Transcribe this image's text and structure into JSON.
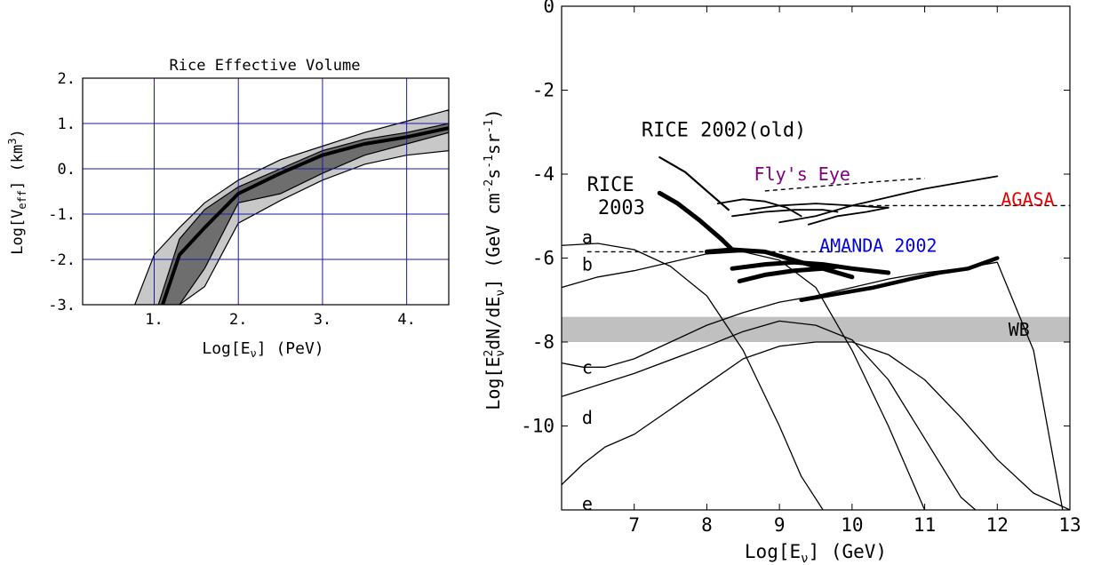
{
  "chart_data": [
    {
      "type": "area",
      "title": "Rice Effective Volume",
      "xlabel_main": "Log[E",
      "xlabel_sub": "ν",
      "xlabel_tail": "]  (PeV)",
      "ylabel_main": "Log[V",
      "ylabel_sub": "eff",
      "ylabel_tail": "]  (km",
      "ylabel_sup": "3",
      "ylabel_close": ")",
      "xlim": [
        0.15,
        4.5
      ],
      "ylim": [
        -3,
        2
      ],
      "xticks": [
        {
          "v": 1,
          "label": "1."
        },
        {
          "v": 2,
          "label": "2."
        },
        {
          "v": 3,
          "label": "3."
        },
        {
          "v": 4,
          "label": "4."
        }
      ],
      "yticks": [
        {
          "v": 2,
          "label": "2."
        },
        {
          "v": 1,
          "label": "1."
        },
        {
          "v": 0,
          "label": "0."
        },
        {
          "v": -1,
          "label": "-1."
        },
        {
          "v": -2,
          "label": "-2."
        },
        {
          "v": -3,
          "label": "-3."
        }
      ],
      "grid": true,
      "grid_color": "#1a1aa0",
      "bands": [
        {
          "color": "#c8c8c8",
          "x": [
            0.77,
            1.0,
            1.3,
            1.6,
            2.0,
            2.5,
            3.0,
            3.5,
            4.0,
            4.5
          ],
          "upper": [
            -3.0,
            -1.9,
            -1.3,
            -0.75,
            -0.25,
            0.2,
            0.5,
            0.8,
            1.05,
            1.3
          ],
          "lower": [
            -3.0,
            -3.0,
            -3.0,
            -2.6,
            -1.2,
            -0.7,
            -0.25,
            0.1,
            0.3,
            0.4
          ]
        },
        {
          "color": "#6e6e6e",
          "x": [
            1.05,
            1.3,
            1.6,
            2.0,
            2.5,
            3.0,
            3.5,
            4.0,
            4.5
          ],
          "upper": [
            -3.0,
            -1.55,
            -0.9,
            -0.4,
            0.0,
            0.4,
            0.65,
            0.8,
            1.0
          ],
          "lower": [
            -3.0,
            -3.0,
            -2.2,
            -0.75,
            -0.55,
            -0.1,
            0.3,
            0.55,
            0.8
          ]
        }
      ],
      "series": [
        {
          "line": "median",
          "width": 4,
          "x": [
            1.1,
            1.3,
            1.6,
            2.0,
            2.5,
            3.0,
            3.5,
            4.0,
            4.5
          ],
          "y": [
            -3.0,
            -1.9,
            -1.3,
            -0.55,
            -0.1,
            0.3,
            0.55,
            0.7,
            0.9
          ]
        }
      ]
    },
    {
      "type": "line",
      "xlabel_main": "Log[E",
      "xlabel_sub": "ν",
      "xlabel_tail": "]  (GeV)",
      "ylabel_main": "Log[E",
      "ylabel_sup1": "2",
      "ylabel_sub1": "ν",
      "ylabel_mid": "dN/dE",
      "ylabel_sub2": "ν",
      "ylabel_tail": "]   (GeV cm",
      "ylabel_sup2": "-2",
      "ylabel_s": "s",
      "ylabel_sup3": "-1",
      "ylabel_sr": "sr",
      "ylabel_sup4": "-1",
      "ylabel_close": ")",
      "xlim": [
        6,
        13
      ],
      "ylim": [
        -12,
        0
      ],
      "xticks": [
        {
          "v": 7,
          "label": "7"
        },
        {
          "v": 8,
          "label": "8"
        },
        {
          "v": 9,
          "label": "9"
        },
        {
          "v": 10,
          "label": "10"
        },
        {
          "v": 11,
          "label": "11"
        },
        {
          "v": 12,
          "label": "12"
        },
        {
          "v": 13,
          "label": "13"
        }
      ],
      "yticks": [
        {
          "v": 0,
          "label": "0"
        },
        {
          "v": -2,
          "label": "-2"
        },
        {
          "v": -4,
          "label": "-4"
        },
        {
          "v": -6,
          "label": "-6"
        },
        {
          "v": -8,
          "label": "-8"
        },
        {
          "v": -10,
          "label": "-10"
        }
      ],
      "grid": false,
      "wb_band": {
        "label": "WB",
        "y": [
          -8.0,
          -7.4
        ],
        "color": "#c0c0c0"
      },
      "labels": [
        {
          "text": "RICE 2002(old)",
          "x": 7.1,
          "y": -3.1,
          "color": "#000000",
          "size": 22
        },
        {
          "text": "RICE",
          "x": 6.35,
          "y": -4.4,
          "color": "#000000",
          "size": 22
        },
        {
          "text": "2003",
          "x": 6.5,
          "y": -4.95,
          "color": "#000000",
          "size": 22
        },
        {
          "text": "Fly's Eye",
          "x": 8.65,
          "y": -4.15,
          "color": "#800080",
          "size": 20
        },
        {
          "text": "AGASA",
          "x": 12.05,
          "y": -4.75,
          "color": "#e00000",
          "size": 20
        },
        {
          "text": "AMANDA 2002",
          "x": 9.55,
          "y": -5.85,
          "color": "#0000e0",
          "size": 20
        },
        {
          "text": "a",
          "x": 6.28,
          "y": -5.65,
          "color": "#000000",
          "size": 20
        },
        {
          "text": "b",
          "x": 6.28,
          "y": -6.3,
          "color": "#000000",
          "size": 20
        },
        {
          "text": "c",
          "x": 6.28,
          "y": -8.75,
          "color": "#000000",
          "size": 20
        },
        {
          "text": "d",
          "x": 6.28,
          "y": -9.95,
          "color": "#000000",
          "size": 20
        },
        {
          "text": "e",
          "x": 6.28,
          "y": -12.0,
          "color": "#000000",
          "size": 20
        }
      ],
      "series": [
        {
          "name": "a",
          "width": 1.3,
          "x": [
            6.0,
            6.5,
            7.0,
            7.5,
            8.0,
            8.5,
            9.0,
            9.3,
            9.6
          ],
          "y": [
            -5.7,
            -5.65,
            -5.8,
            -6.2,
            -6.9,
            -8.2,
            -10.0,
            -11.2,
            -12.0
          ]
        },
        {
          "name": "b",
          "width": 1.3,
          "x": [
            6.0,
            6.5,
            7.0,
            7.5,
            8.0,
            8.5,
            9.0,
            9.5,
            10.0,
            10.5,
            11.0
          ],
          "y": [
            -6.7,
            -6.45,
            -6.3,
            -6.1,
            -5.9,
            -5.85,
            -6.05,
            -6.7,
            -8.2,
            -10.0,
            -12.0
          ]
        },
        {
          "name": "c",
          "width": 1.3,
          "x": [
            6.0,
            6.3,
            6.6,
            7.0,
            7.5,
            8.0,
            8.5,
            9.0,
            9.5,
            10.0,
            10.5,
            11.0,
            11.5,
            12.0,
            12.5,
            12.9
          ],
          "y": [
            -8.5,
            -8.6,
            -8.6,
            -8.4,
            -8.0,
            -7.6,
            -7.3,
            -7.05,
            -6.9,
            -6.7,
            -6.5,
            -6.35,
            -6.25,
            -6.1,
            -8.2,
            -12.0
          ]
        },
        {
          "name": "d",
          "width": 1.3,
          "x": [
            6.0,
            7.0,
            8.0,
            8.5,
            9.0,
            9.5,
            10.0,
            10.5,
            11.0,
            11.5,
            11.7
          ],
          "y": [
            -9.3,
            -8.75,
            -8.1,
            -7.75,
            -7.5,
            -7.6,
            -7.95,
            -8.9,
            -10.3,
            -11.7,
            -12.0
          ]
        },
        {
          "name": "e",
          "width": 1.3,
          "x": [
            6.0,
            6.3,
            6.6,
            7.0,
            7.5,
            8.0,
            8.5,
            9.0,
            9.5,
            10.0,
            10.5,
            11.0,
            11.5,
            12.0,
            12.5,
            13.0
          ],
          "y": [
            -11.4,
            -10.9,
            -10.5,
            -10.2,
            -9.6,
            -9.0,
            -8.4,
            -8.1,
            -8.0,
            -8.0,
            -8.3,
            -8.9,
            -9.8,
            -10.8,
            -11.6,
            -12.0
          ]
        },
        {
          "name": "RICE 2002(old)",
          "width": 2.2,
          "x": [
            7.35,
            7.7,
            8.0,
            8.3
          ],
          "y": [
            -3.6,
            -3.95,
            -4.4,
            -4.85
          ]
        },
        {
          "name": "RICE 2003",
          "width": 5,
          "x": [
            7.35,
            7.6,
            7.9,
            8.2,
            8.35
          ],
          "y": [
            -4.45,
            -4.7,
            -5.1,
            -5.55,
            -5.8
          ]
        },
        {
          "name": "RICE 2003",
          "width": 5,
          "x": [
            8.0,
            8.35,
            8.8,
            9.1,
            9.4,
            9.7,
            10.0
          ],
          "y": [
            -5.85,
            -5.8,
            -5.85,
            -6.0,
            -6.15,
            -6.3,
            -6.45
          ]
        },
        {
          "name": "RICE 2003",
          "width": 5,
          "x": [
            8.35,
            8.8,
            9.2,
            9.6,
            10.0,
            10.5
          ],
          "y": [
            -6.25,
            -6.15,
            -6.1,
            -6.15,
            -6.25,
            -6.35
          ]
        },
        {
          "name": "RICE 2003",
          "width": 5,
          "x": [
            8.45,
            8.8,
            9.2,
            9.6,
            9.8
          ],
          "y": [
            -6.55,
            -6.4,
            -6.3,
            -6.25,
            -6.2
          ]
        },
        {
          "name": "AMANDA 2002",
          "width": 4.5,
          "x": [
            9.3,
            9.8,
            10.3,
            10.8,
            11.2,
            11.6,
            12.0
          ],
          "y": [
            -7.0,
            -6.85,
            -6.7,
            -6.5,
            -6.35,
            -6.25,
            -6.0
          ]
        },
        {
          "name": "Fly's Eye",
          "width": 1.8,
          "x": [
            8.15,
            8.5,
            8.8,
            9.1,
            9.3
          ],
          "y": [
            -4.7,
            -4.6,
            -4.65,
            -4.8,
            -5.0
          ]
        },
        {
          "name": "Fly's Eye",
          "width": 1.8,
          "x": [
            8.6,
            9.0,
            9.5,
            10.0,
            10.5
          ],
          "y": [
            -4.85,
            -4.75,
            -4.7,
            -4.75,
            -4.8
          ]
        },
        {
          "name": "Fly's Eye",
          "width": 1.8,
          "x": [
            8.35,
            8.8,
            9.2,
            9.6,
            9.8
          ],
          "y": [
            -5.0,
            -4.9,
            -4.85,
            -4.85,
            -4.9
          ]
        },
        {
          "name": "AGASA",
          "width": 1.8,
          "x": [
            9.0,
            9.5,
            10.0,
            10.5,
            11.0,
            11.5,
            12.0
          ],
          "y": [
            -5.15,
            -5.0,
            -4.75,
            -4.55,
            -4.35,
            -4.2,
            -4.05
          ]
        },
        {
          "name": "AGASA",
          "width": 1.8,
          "x": [
            9.4,
            9.8,
            10.2,
            10.5
          ],
          "y": [
            -5.2,
            -5.0,
            -4.9,
            -4.8
          ]
        }
      ],
      "dashed": [
        {
          "name": "Fly's Eye",
          "x": [
            8.8,
            9.5,
            10.2,
            11.0
          ],
          "y": [
            -4.4,
            -4.3,
            -4.2,
            -4.1
          ]
        },
        {
          "name": "AGASA",
          "x": [
            9.9,
            10.5,
            11.0,
            11.5,
            12.0,
            13.0
          ],
          "y": [
            -4.75,
            -4.75,
            -4.75,
            -4.75,
            -4.75,
            -4.75
          ]
        },
        {
          "name": "RICE 2003",
          "x": [
            6.35,
            7.5,
            8.5,
            9.5,
            10.0
          ],
          "y": [
            -5.85,
            -5.85,
            -5.85,
            -5.85,
            -5.85
          ]
        }
      ]
    }
  ]
}
